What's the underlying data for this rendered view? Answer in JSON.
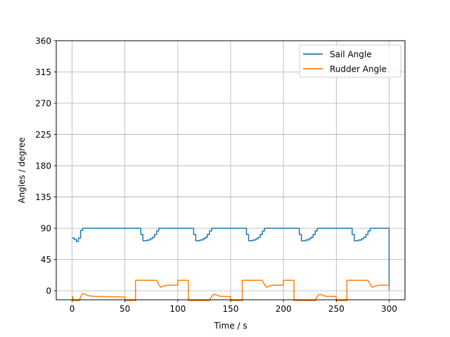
{
  "chart_data": {
    "type": "line",
    "title": "",
    "xlabel": "Time / s",
    "ylabel": "Angles / degree",
    "xlim": [
      -15,
      315
    ],
    "ylim": [
      -13,
      360
    ],
    "xticks": [
      0,
      50,
      100,
      150,
      200,
      250,
      300
    ],
    "yticks": [
      0,
      45,
      90,
      135,
      180,
      225,
      270,
      315,
      360
    ],
    "grid": true,
    "legend_position": "top-right",
    "series": [
      {
        "name": "Sail Angle",
        "color": "#1f77b4",
        "points": [
          [
            0,
            76
          ],
          [
            2,
            76
          ],
          [
            2,
            74
          ],
          [
            4,
            74
          ],
          [
            4,
            71
          ],
          [
            6,
            71
          ],
          [
            6,
            76
          ],
          [
            8,
            76
          ],
          [
            8,
            87
          ],
          [
            10,
            87
          ],
          [
            10,
            90
          ],
          [
            65,
            90
          ],
          [
            65,
            81
          ],
          [
            67,
            81
          ],
          [
            67,
            72
          ],
          [
            71,
            72
          ],
          [
            71,
            73
          ],
          [
            74,
            73
          ],
          [
            74,
            75
          ],
          [
            76,
            75
          ],
          [
            76,
            77
          ],
          [
            78,
            77
          ],
          [
            78,
            81
          ],
          [
            80,
            81
          ],
          [
            80,
            86
          ],
          [
            82,
            86
          ],
          [
            82,
            90
          ],
          [
            115,
            90
          ],
          [
            115,
            81
          ],
          [
            117,
            81
          ],
          [
            117,
            72
          ],
          [
            121,
            72
          ],
          [
            121,
            73
          ],
          [
            124,
            73
          ],
          [
            124,
            75
          ],
          [
            126,
            75
          ],
          [
            126,
            77
          ],
          [
            128,
            77
          ],
          [
            128,
            81
          ],
          [
            130,
            81
          ],
          [
            130,
            86
          ],
          [
            132,
            86
          ],
          [
            132,
            90
          ],
          [
            165,
            90
          ],
          [
            165,
            81
          ],
          [
            167,
            81
          ],
          [
            167,
            72
          ],
          [
            171,
            72
          ],
          [
            171,
            73
          ],
          [
            174,
            73
          ],
          [
            174,
            75
          ],
          [
            176,
            75
          ],
          [
            176,
            77
          ],
          [
            178,
            77
          ],
          [
            178,
            81
          ],
          [
            180,
            81
          ],
          [
            180,
            86
          ],
          [
            182,
            86
          ],
          [
            182,
            90
          ],
          [
            215,
            90
          ],
          [
            215,
            81
          ],
          [
            217,
            81
          ],
          [
            217,
            72
          ],
          [
            221,
            72
          ],
          [
            221,
            73
          ],
          [
            224,
            73
          ],
          [
            224,
            75
          ],
          [
            226,
            75
          ],
          [
            226,
            77
          ],
          [
            228,
            77
          ],
          [
            228,
            81
          ],
          [
            230,
            81
          ],
          [
            230,
            86
          ],
          [
            232,
            86
          ],
          [
            232,
            90
          ],
          [
            265,
            90
          ],
          [
            265,
            81
          ],
          [
            267,
            81
          ],
          [
            267,
            72
          ],
          [
            271,
            72
          ],
          [
            271,
            73
          ],
          [
            274,
            73
          ],
          [
            274,
            75
          ],
          [
            276,
            75
          ],
          [
            276,
            77
          ],
          [
            278,
            77
          ],
          [
            278,
            81
          ],
          [
            280,
            81
          ],
          [
            280,
            86
          ],
          [
            282,
            86
          ],
          [
            282,
            90
          ],
          [
            300,
            90
          ],
          [
            300,
            1
          ]
        ]
      },
      {
        "name": "Rudder Angle",
        "color": "#ff7f0e",
        "points": [
          [
            0,
            -14
          ],
          [
            0.5,
            -8
          ],
          [
            1,
            -14
          ],
          [
            7,
            -14
          ],
          [
            8,
            -9
          ],
          [
            10,
            -4
          ],
          [
            12,
            -5
          ],
          [
            15,
            -7
          ],
          [
            20,
            -8
          ],
          [
            30,
            -8.5
          ],
          [
            50,
            -9
          ],
          [
            50,
            -14
          ],
          [
            60,
            -14
          ],
          [
            60,
            15
          ],
          [
            80,
            15
          ],
          [
            82,
            9
          ],
          [
            84,
            5
          ],
          [
            87,
            7
          ],
          [
            90,
            8
          ],
          [
            100,
            8
          ],
          [
            100,
            15
          ],
          [
            110,
            15
          ],
          [
            110,
            -14
          ],
          [
            130,
            -14
          ],
          [
            132,
            -8
          ],
          [
            134,
            -5
          ],
          [
            137,
            -6
          ],
          [
            140,
            -8
          ],
          [
            150,
            -8.5
          ],
          [
            150,
            -14
          ],
          [
            161,
            -14
          ],
          [
            161,
            15
          ],
          [
            180,
            15
          ],
          [
            182,
            9
          ],
          [
            184,
            5
          ],
          [
            187,
            7
          ],
          [
            190,
            8
          ],
          [
            200,
            8
          ],
          [
            200,
            15
          ],
          [
            210,
            15
          ],
          [
            210,
            -14
          ],
          [
            230,
            -14
          ],
          [
            232,
            -8
          ],
          [
            234,
            -5
          ],
          [
            237,
            -6
          ],
          [
            240,
            -8
          ],
          [
            250,
            -8.5
          ],
          [
            250,
            -14
          ],
          [
            260,
            -14
          ],
          [
            260,
            15
          ],
          [
            280,
            15
          ],
          [
            282,
            9
          ],
          [
            284,
            5
          ],
          [
            287,
            7
          ],
          [
            290,
            8
          ],
          [
            300,
            8
          ],
          [
            300,
            0
          ]
        ]
      }
    ]
  }
}
